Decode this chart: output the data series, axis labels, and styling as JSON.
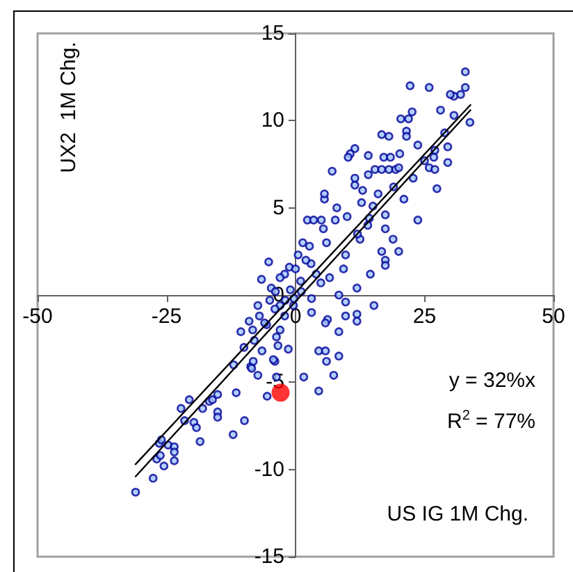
{
  "chart_data": {
    "type": "scatter",
    "xlabel": "US IG 1M Chg.",
    "ylabel": "UX2  1M Chg.",
    "xlim": [
      -50,
      50
    ],
    "xticks": [
      -50,
      -25,
      0,
      25,
      50
    ],
    "ylim": [
      -15,
      15
    ],
    "yticks": [
      -15,
      -10,
      -5,
      0,
      5,
      10,
      15
    ],
    "grid": false,
    "marker": "circle",
    "annotations": [
      "y = 32%x",
      "R$^{2}$ = 77%"
    ],
    "series": [
      {
        "color": "#000099",
        "x": [
          -31,
          -27.6,
          -26.9,
          -26.2,
          -25.5,
          -26.4,
          -26,
          -24.7,
          -23.5,
          -23.5,
          -23.5,
          -22.2,
          -20.6,
          -21.5,
          -19.7,
          -19.2,
          -18.5,
          -18,
          -16.7,
          -16.1,
          -15.1,
          -15.1,
          -15.1,
          -12.1,
          -11.5,
          -9.9,
          -8.7,
          -8.5,
          -7.3,
          -5.5,
          -3.7,
          -4,
          1.6,
          4.5,
          7.4,
          6,
          27.4,
          23.7,
          20,
          18.9,
          17.4,
          17.4,
          16.7,
          17.4,
          17.4,
          14.5,
          15.2,
          14.3,
          15,
          12.8,
          12.5,
          11.9,
          11.9,
          11.9,
          9.7,
          9.7,
          9.7,
          8.4,
          8.4,
          7.7,
          6.2,
          5.8,
          5.4,
          5.6,
          5.6,
          4.5,
          5.8,
          8.4,
          3.1,
          3.1,
          2.3,
          3.5,
          1.4,
          0.5,
          2.7,
          4,
          6.6,
          9.3,
          4.9,
          -1.2,
          -2.1,
          -3,
          -5.2,
          -6.6,
          -4.7,
          -3.9,
          -7.3,
          -7,
          -10.6,
          -8.3,
          -5.6,
          -3.7,
          -3.4,
          -1.4,
          -4.3,
          -6.5,
          -8.2,
          -2.1,
          -3,
          -0.4,
          -0.3,
          1.1,
          32.9,
          32.9,
          32,
          30.7,
          30,
          33.8,
          30.7,
          28.1,
          22.2,
          25.9,
          22.6,
          20.4,
          21.9,
          21.5,
          21.5,
          23.7,
          16.7,
          18.1,
          20.2,
          17.1,
          18.4,
          14.1,
          11.5,
          10.6,
          10.2,
          7.1,
          11.5,
          11.5,
          14.1,
          15.4,
          16.7,
          18.1,
          19.4,
          22.8,
          25,
          27,
          25.9,
          27,
          29.5,
          29.5,
          28.9,
          26.8,
          5,
          8,
          10,
          12,
          6,
          3,
          1,
          -1,
          -2,
          -4,
          -6,
          -5,
          0,
          2,
          -8,
          -10,
          -12,
          -9,
          -3,
          14,
          16,
          19,
          20,
          21,
          13
        ],
        "values": [
          -11.3,
          -10.5,
          -9.4,
          -9.2,
          -9.8,
          -8.5,
          -8.3,
          -8.6,
          -8.7,
          -9,
          -9.5,
          -6.5,
          -6,
          -7.2,
          -7.3,
          -7.6,
          -8.4,
          -6.5,
          -6.1,
          -6,
          -5.7,
          -6.7,
          -7,
          -8,
          -5.6,
          -7.2,
          -4.1,
          -4.2,
          -4.6,
          -5.8,
          -4.7,
          -3.8,
          -4.7,
          -5.5,
          -4.6,
          -3.8,
          6.1,
          4.3,
          2.5,
          3.2,
          2,
          1.7,
          2.5,
          3.8,
          4.6,
          1.2,
          -0.6,
          4.4,
          5.1,
          5.3,
          3.2,
          0.4,
          -1.1,
          -1.5,
          2.3,
          -0.4,
          -1.2,
          0,
          -2.1,
          4.3,
          -1.4,
          -1.6,
          3.8,
          5.5,
          5.8,
          -3.2,
          -3.2,
          -3.5,
          -1,
          -0.2,
          4.3,
          4.3,
          3,
          2.3,
          2.8,
          1.2,
          1,
          1.5,
          0.7,
          1.6,
          1.2,
          1,
          1.9,
          0.9,
          0.4,
          0.2,
          -0.6,
          -1.2,
          -2.1,
          -2,
          -1.7,
          -2.4,
          -2.9,
          -3.1,
          -3.7,
          -3.2,
          -3.8,
          -1.2,
          -0.6,
          -0.6,
          -0.2,
          0.2,
          12.8,
          11.9,
          11.5,
          11.4,
          11.5,
          9.9,
          10.3,
          10.6,
          12,
          11.9,
          10.5,
          10.1,
          10.1,
          9.4,
          9.1,
          8.6,
          9.2,
          9.1,
          8.1,
          7.9,
          7.9,
          8,
          8.4,
          8.1,
          7.9,
          7.1,
          6.7,
          6.3,
          6.9,
          7.2,
          7.2,
          7.2,
          7.2,
          6.7,
          7.7,
          8.3,
          7.3,
          7.2,
          8.5,
          7.6,
          9.3,
          7.9,
          4.3,
          5,
          4.5,
          3.5,
          3,
          1.8,
          0.8,
          0.3,
          -0.3,
          -0.8,
          -1.6,
          -0.3,
          1.5,
          2,
          -2.6,
          -3,
          -4,
          -1.5,
          -2,
          4,
          5.8,
          6.2,
          7.3,
          5.5,
          6
        ]
      },
      {
        "type": "line",
        "color": "#000000",
        "marker": "none",
        "line_style": "solid",
        "x": [
          -31,
          33.9
        ],
        "values": [
          -9.7,
          10.9
        ]
      },
      {
        "type": "line",
        "color": "#000000",
        "marker": "none",
        "line_style": "solid",
        "x": [
          -31,
          33.9
        ],
        "values": [
          -10.4,
          10.6
        ]
      },
      {
        "color": "#ff0000",
        "x": [
          -2.9
        ],
        "values": [
          -5.6
        ]
      }
    ]
  }
}
